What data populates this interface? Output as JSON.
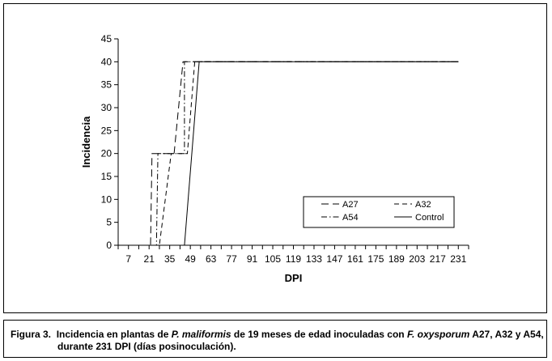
{
  "chart_data": {
    "type": "line",
    "xlabel": "DPI",
    "ylabel": "Incidencia",
    "xlim": [
      0,
      238
    ],
    "ylim": [
      0,
      45
    ],
    "xticks": [
      7,
      21,
      35,
      49,
      63,
      77,
      91,
      105,
      119,
      133,
      147,
      161,
      175,
      189,
      203,
      217,
      231
    ],
    "yticks": [
      0,
      5,
      10,
      15,
      20,
      25,
      30,
      35,
      40,
      45
    ],
    "grid": false,
    "legend_position": "bottom-right",
    "series": [
      {
        "name": "A27",
        "style": "long-dash",
        "x": [
          7,
          22,
          23,
          38,
          44,
          231
        ],
        "y": [
          0,
          0,
          20,
          20,
          40,
          40
        ]
      },
      {
        "name": "A32",
        "style": "dash",
        "x": [
          7,
          28,
          36,
          47,
          52,
          231
        ],
        "y": [
          0,
          0,
          20,
          20,
          40,
          40
        ]
      },
      {
        "name": "A54",
        "style": "dash-dot",
        "x": [
          7,
          26,
          27,
          45,
          45,
          231
        ],
        "y": [
          0,
          0,
          20,
          20,
          40,
          40
        ]
      },
      {
        "name": "Control",
        "style": "solid",
        "x": [
          7,
          45,
          55,
          231
        ],
        "y": [
          0,
          0,
          40,
          40
        ]
      }
    ]
  },
  "caption": {
    "label": "Figura 3.",
    "text_1": "Incidencia en plantas de ",
    "species_1": "P. maliformis",
    "text_2": " de 19 meses de edad inoculadas con ",
    "species_2": "F. oxysporum",
    "text_3": " A27, A32 y A54,",
    "line_2": "durante 231 DPI (días posinoculación)."
  },
  "colors": {
    "line": "#000000",
    "background": "#ffffff"
  }
}
